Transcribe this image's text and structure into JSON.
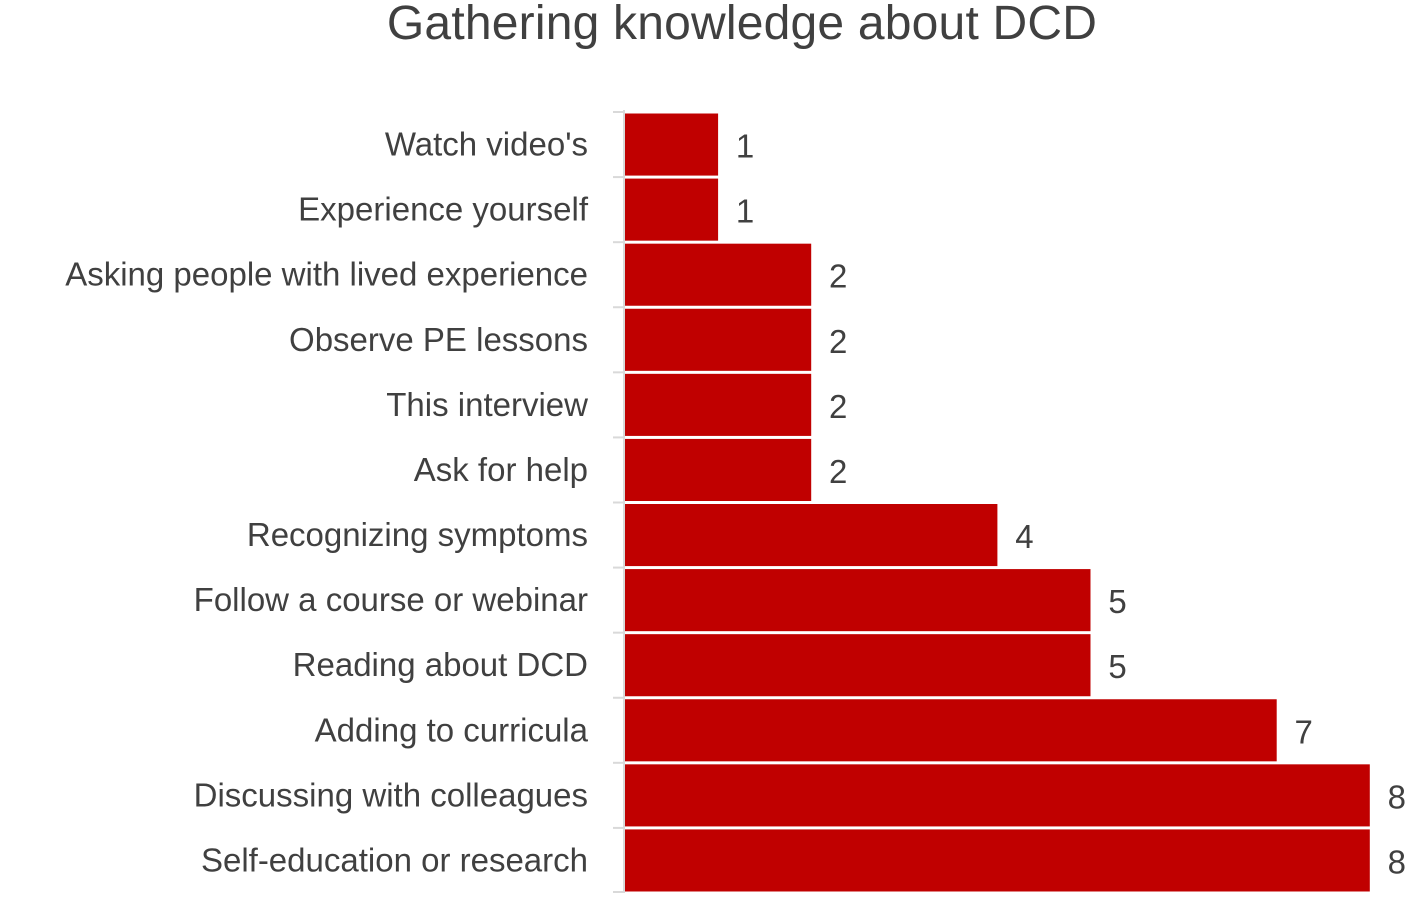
{
  "chart_data": {
    "type": "bar",
    "orientation": "horizontal",
    "title": "Gathering knowledge about DCD",
    "categories": [
      "Watch video's",
      "Experience yourself",
      "Asking people with lived experience",
      "Observe PE lessons",
      "This interview",
      "Ask for help",
      "Recognizing symptoms",
      "Follow a course or webinar",
      "Reading about DCD",
      "Adding to curricula",
      "Discussing with colleagues",
      "Self-education or research"
    ],
    "values": [
      1,
      1,
      2,
      2,
      2,
      2,
      4,
      5,
      5,
      7,
      8,
      8
    ],
    "data_labels": [
      "1",
      "1",
      "2",
      "2",
      "2",
      "2",
      "4",
      "5",
      "5",
      "7",
      "8",
      "8"
    ],
    "xlim": [
      0,
      8
    ],
    "grid": false,
    "legend": "none",
    "colors": {
      "bar": "#c00000",
      "axis": "#d9d9d9",
      "text": "#404040"
    }
  }
}
